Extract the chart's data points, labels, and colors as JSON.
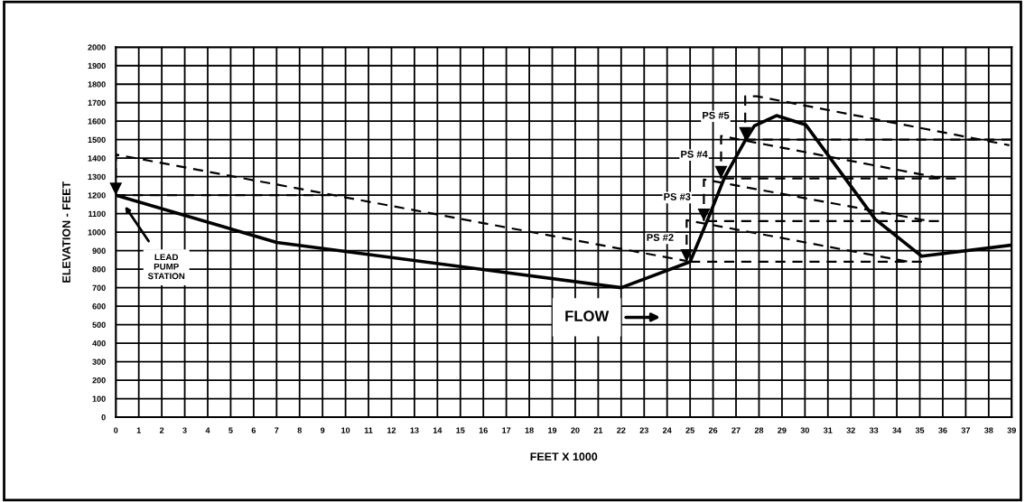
{
  "chart_data": {
    "type": "line",
    "xlabel": "FEET X 1000",
    "ylabel": "ELEVATION - FEET",
    "xlim": [
      0,
      39
    ],
    "xticks": [
      0,
      1,
      2,
      3,
      4,
      5,
      6,
      7,
      8,
      9,
      10,
      11,
      12,
      13,
      14,
      15,
      16,
      17,
      18,
      19,
      20,
      21,
      22,
      23,
      24,
      25,
      26,
      27,
      28,
      29,
      30,
      31,
      32,
      33,
      34,
      35,
      36,
      37,
      38,
      39
    ],
    "ylim": [
      0,
      2000
    ],
    "yticks": [
      0,
      100,
      200,
      300,
      400,
      500,
      600,
      700,
      800,
      900,
      1000,
      1100,
      1200,
      1300,
      1400,
      1500,
      1600,
      1700,
      1800,
      1900,
      2000
    ],
    "grid": true,
    "legend": false,
    "marker": "none",
    "series": [
      {
        "color": "#000000",
        "line_style": "solid",
        "x": [
          0,
          7,
          22,
          25,
          25.74,
          26.48,
          27.42,
          27.8,
          28.76,
          30.04,
          33.06,
          35.08,
          39
        ],
        "values": [
          1200,
          945,
          700,
          840,
          1060,
          1290,
          1500,
          1575,
          1630,
          1580,
          1070,
          870,
          930
        ]
      },
      {
        "color": "#000000",
        "line_style": "dashed",
        "x": [
          0,
          0,
          24.8
        ],
        "values": [
          1200,
          1420,
          845
        ]
      },
      {
        "color": "#000000",
        "line_style": "dashed",
        "x": [
          0,
          10
        ],
        "values": [
          1200,
          1200
        ]
      },
      {
        "color": "#000000",
        "line_style": "dashed",
        "x": [
          25,
          35.1
        ],
        "values": [
          840,
          840
        ]
      },
      {
        "color": "#000000",
        "line_style": "dashed",
        "x": [
          24.85,
          24.85,
          34.5
        ],
        "values": [
          840,
          1065,
          840
        ]
      },
      {
        "color": "#000000",
        "line_style": "dashed",
        "x": [
          25.74,
          35.9
        ],
        "values": [
          1060,
          1060
        ]
      },
      {
        "color": "#000000",
        "line_style": "dashed",
        "x": [
          25.6,
          25.6,
          35.4
        ],
        "values": [
          1060,
          1285,
          1060
        ]
      },
      {
        "color": "#000000",
        "line_style": "dashed",
        "x": [
          26.48,
          36.6
        ],
        "values": [
          1290,
          1290
        ]
      },
      {
        "color": "#000000",
        "line_style": "dashed",
        "x": [
          26.35,
          26.35,
          36
        ],
        "values": [
          1290,
          1520,
          1290
        ]
      },
      {
        "color": "#000000",
        "line_style": "dashed",
        "x": [
          27.42,
          39
        ],
        "values": [
          1500,
          1500
        ]
      },
      {
        "color": "#000000",
        "line_style": "dashed",
        "x": [
          27.4,
          27.4,
          27.9,
          38.9
        ],
        "values": [
          1500,
          1735,
          1735,
          1470
        ]
      }
    ],
    "annotations": [
      "LEAD\nPUMP\nSTATION",
      {
        "text": "PS #2",
        "x": 25,
        "y": 840
      },
      {
        "text": "PS #3",
        "x": 25.74,
        "y": 1060
      },
      {
        "text": "PS #4",
        "x": 26.48,
        "y": 1290
      },
      {
        "text": "PS #5",
        "x": 27.42,
        "y": 1500
      },
      "FLOW"
    ]
  }
}
